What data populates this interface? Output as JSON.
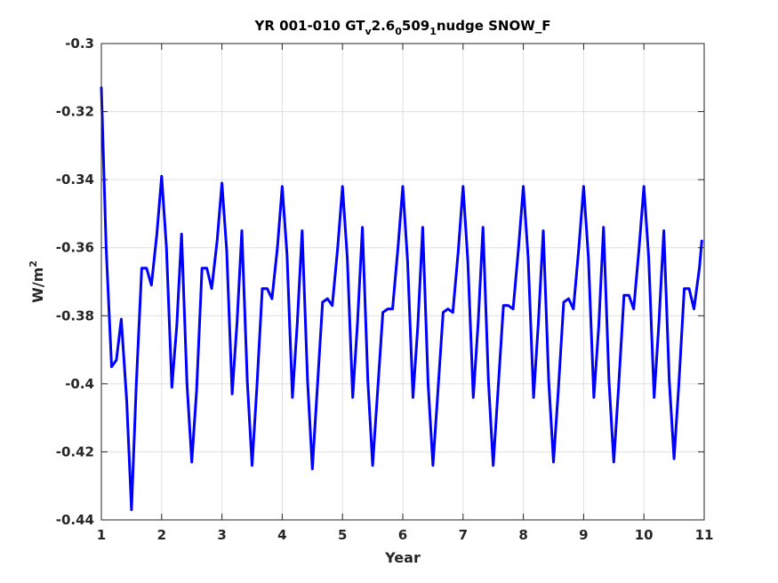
{
  "chart_data": {
    "type": "line",
    "title": {
      "main": "YR 001-010 GT",
      "sub1": "v",
      "part2": "2.6",
      "sub2": "0",
      "part3": "509",
      "sub3": "1",
      "part4": "nudge SNOW_F"
    },
    "xlabel": "Year",
    "ylabel": {
      "base": "W/m",
      "sup": "2"
    },
    "xlim": [
      1,
      11
    ],
    "ylim": [
      -0.44,
      -0.3
    ],
    "xticks": [
      1,
      2,
      3,
      4,
      5,
      6,
      7,
      8,
      9,
      10,
      11
    ],
    "xtick_labels": [
      "1",
      "2",
      "3",
      "4",
      "5",
      "6",
      "7",
      "8",
      "9",
      "10",
      "11"
    ],
    "yticks": [
      -0.44,
      -0.42,
      -0.4,
      -0.38,
      -0.36,
      -0.34,
      -0.32,
      -0.3
    ],
    "ytick_labels": [
      "-0.44",
      "-0.42",
      "-0.4",
      "-0.38",
      "-0.36",
      "-0.34",
      "-0.32",
      "-0.3"
    ],
    "grid": true,
    "series": [
      {
        "color": "#0000ff",
        "x": [
          1.0,
          1.08,
          1.17,
          1.25,
          1.33,
          1.42,
          1.5,
          1.58,
          1.67,
          1.75,
          1.83,
          1.92,
          2.0,
          2.08,
          2.17,
          2.25,
          2.33,
          2.42,
          2.5,
          2.58,
          2.67,
          2.75,
          2.83,
          2.92,
          3.0,
          3.08,
          3.17,
          3.25,
          3.33,
          3.42,
          3.5,
          3.58,
          3.67,
          3.75,
          3.83,
          3.92,
          4.0,
          4.08,
          4.17,
          4.25,
          4.33,
          4.42,
          4.5,
          4.58,
          4.67,
          4.75,
          4.83,
          4.92,
          5.0,
          5.08,
          5.17,
          5.25,
          5.33,
          5.42,
          5.5,
          5.58,
          5.67,
          5.75,
          5.83,
          5.92,
          6.0,
          6.08,
          6.17,
          6.25,
          6.33,
          6.42,
          6.5,
          6.58,
          6.67,
          6.75,
          6.83,
          6.92,
          7.0,
          7.08,
          7.17,
          7.25,
          7.33,
          7.42,
          7.5,
          7.58,
          7.67,
          7.75,
          7.83,
          7.92,
          8.0,
          8.08,
          8.17,
          8.25,
          8.33,
          8.42,
          8.5,
          8.58,
          8.67,
          8.75,
          8.83,
          8.92,
          9.0,
          9.08,
          9.17,
          9.25,
          9.33,
          9.42,
          9.5,
          9.58,
          9.67,
          9.75,
          9.83,
          9.92,
          10.0,
          10.08,
          10.17,
          10.25,
          10.33,
          10.42,
          10.5,
          10.58,
          10.67,
          10.75,
          10.83,
          10.92,
          10.96
        ],
        "y": [
          -0.313,
          -0.36,
          -0.395,
          -0.393,
          -0.381,
          -0.405,
          -0.437,
          -0.4,
          -0.366,
          -0.366,
          -0.371,
          -0.356,
          -0.339,
          -0.36,
          -0.401,
          -0.383,
          -0.356,
          -0.4,
          -0.423,
          -0.402,
          -0.366,
          -0.366,
          -0.372,
          -0.358,
          -0.341,
          -0.361,
          -0.403,
          -0.382,
          -0.355,
          -0.399,
          -0.424,
          -0.401,
          -0.372,
          -0.372,
          -0.375,
          -0.36,
          -0.342,
          -0.362,
          -0.404,
          -0.382,
          -0.355,
          -0.399,
          -0.425,
          -0.402,
          -0.376,
          -0.375,
          -0.377,
          -0.36,
          -0.342,
          -0.363,
          -0.404,
          -0.382,
          -0.354,
          -0.399,
          -0.424,
          -0.403,
          -0.379,
          -0.378,
          -0.378,
          -0.36,
          -0.342,
          -0.364,
          -0.404,
          -0.383,
          -0.354,
          -0.4,
          -0.424,
          -0.403,
          -0.379,
          -0.378,
          -0.379,
          -0.361,
          -0.342,
          -0.364,
          -0.404,
          -0.382,
          -0.354,
          -0.399,
          -0.424,
          -0.402,
          -0.377,
          -0.377,
          -0.378,
          -0.36,
          -0.342,
          -0.363,
          -0.404,
          -0.382,
          -0.355,
          -0.399,
          -0.423,
          -0.402,
          -0.376,
          -0.375,
          -0.378,
          -0.36,
          -0.342,
          -0.363,
          -0.404,
          -0.383,
          -0.354,
          -0.399,
          -0.423,
          -0.401,
          -0.374,
          -0.374,
          -0.378,
          -0.36,
          -0.342,
          -0.363,
          -0.404,
          -0.382,
          -0.355,
          -0.399,
          -0.422,
          -0.4,
          -0.372,
          -0.372,
          -0.378,
          -0.366,
          -0.358
        ]
      }
    ]
  }
}
